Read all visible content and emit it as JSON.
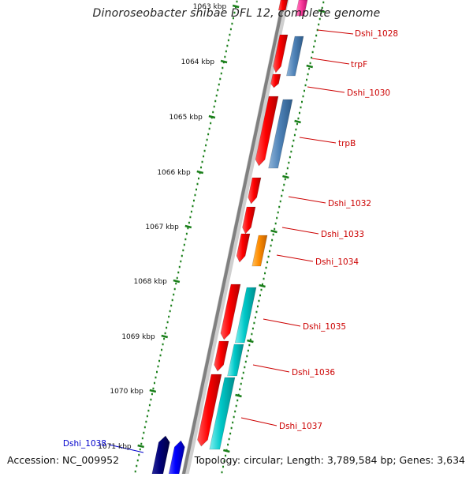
{
  "title": "Dinoroseobacter shibae DFL 12, complete genome",
  "footer": {
    "accession": "Accession: NC_009952",
    "summary": "Topology: circular; Length: 3,789,584 bp; Genes: 3,634"
  },
  "ruler": {
    "labels": [
      "1063 kbp",
      "1064 kbp",
      "1065 kbp",
      "1066 kbp",
      "1067 kbp",
      "1068 kbp",
      "1069 kbp",
      "1070 kbp",
      "1071 kbp"
    ]
  },
  "colors": {
    "forward_gene": "#ff0000",
    "cds_blue": "#4f83b8",
    "cds_orange": "#ff8c00",
    "cds_cyan": "#00c8c8",
    "rna_pink": "#ff3fa0",
    "dark_blue_gene": "#00007a",
    "blue_gene": "#0000ff",
    "ruler_tick": "#1a7f1a",
    "backbone": "#808080",
    "label_red": "#cc0000",
    "label_blue": "#0000cc"
  },
  "gene_labels": [
    {
      "text": "Dshi_1028",
      "color": "red"
    },
    {
      "text": "trpF",
      "color": "red"
    },
    {
      "text": "Dshi_1030",
      "color": "red"
    },
    {
      "text": "trpB",
      "color": "red"
    },
    {
      "text": "Dshi_1032",
      "color": "red"
    },
    {
      "text": "Dshi_1033",
      "color": "red"
    },
    {
      "text": "Dshi_1034",
      "color": "red"
    },
    {
      "text": "Dshi_1035",
      "color": "red"
    },
    {
      "text": "Dshi_1036",
      "color": "red"
    },
    {
      "text": "Dshi_1037",
      "color": "red"
    },
    {
      "text": "Dshi_1038",
      "color": "blue"
    }
  ]
}
